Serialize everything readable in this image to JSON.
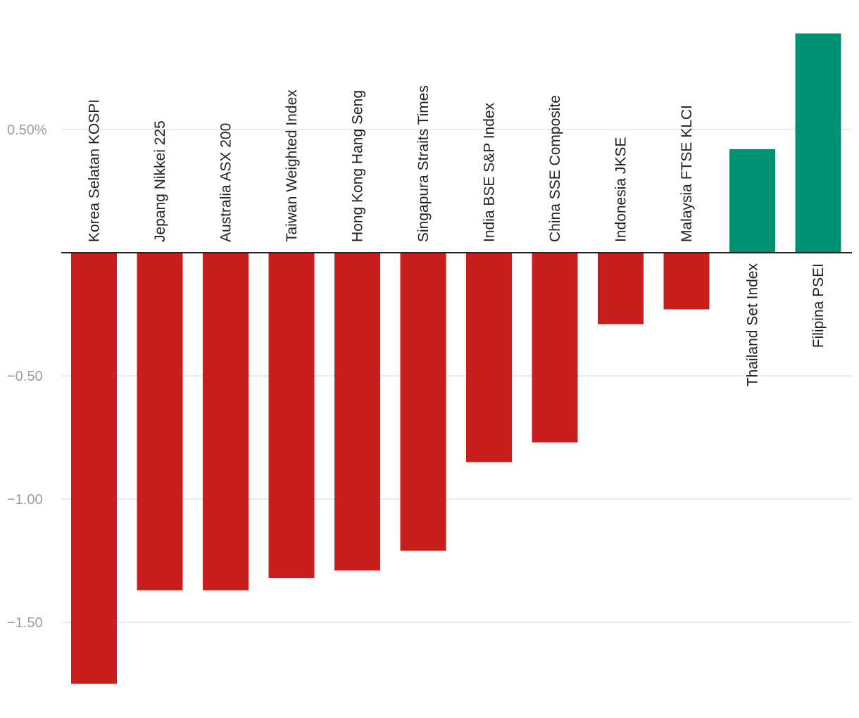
{
  "chart_data": {
    "type": "bar",
    "title": "",
    "xlabel": "",
    "ylabel": "",
    "categories": [
      "Korea Selatan KOSPI",
      "Jepang Nikkei 225",
      "Australia ASX 200",
      "Taiwan Weighted Index",
      "Hong Kong Hang Seng",
      "Singapura Straits Times",
      "India BSE S&P Index",
      "China SSE Composite",
      "Indonesia JKSE",
      "Malaysia FTSE KLCI",
      "Thailand Set Index",
      "Filipina PSEI"
    ],
    "values": [
      -1.75,
      -1.37,
      -1.37,
      -1.32,
      -1.29,
      -1.21,
      -0.85,
      -0.77,
      -0.29,
      -0.23,
      0.42,
      0.89
    ],
    "ylim": [
      -1.76,
      0.9
    ],
    "yticks": [
      0.5,
      -0.5,
      -1.0,
      -1.5
    ],
    "ytick_labels": [
      "0.50%",
      "−0.50",
      "−1.00",
      "−1.50"
    ],
    "grid": true,
    "colors": {
      "positive": "#009172",
      "negative": "#c81e1e"
    }
  }
}
